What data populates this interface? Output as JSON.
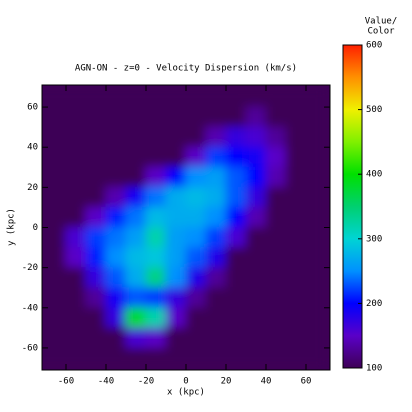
{
  "chart_data": {
    "type": "heatmap",
    "title": "AGN-ON - z=0 - Velocity Dispersion (km/s)",
    "x_label": "x (kpc)",
    "y_label": "y (kpc)",
    "colorbar_title": [
      "Value/",
      "Color"
    ],
    "x": [
      -75,
      -65,
      -55,
      -45,
      -35,
      -25,
      -15,
      -5,
      5,
      15,
      25,
      35,
      45,
      55,
      65
    ],
    "y": [
      65,
      55,
      45,
      35,
      25,
      15,
      5,
      -5,
      -15,
      -25,
      -35,
      -45,
      -55,
      -65
    ],
    "z": [
      [
        100,
        100,
        100,
        100,
        100,
        100,
        100,
        100,
        100,
        100,
        100,
        100,
        100,
        100,
        100
      ],
      [
        100,
        100,
        100,
        100,
        100,
        100,
        100,
        100,
        100,
        100,
        100,
        130,
        100,
        100,
        100
      ],
      [
        100,
        100,
        100,
        100,
        100,
        100,
        100,
        100,
        100,
        140,
        170,
        160,
        130,
        100,
        100
      ],
      [
        100,
        100,
        100,
        100,
        100,
        100,
        100,
        100,
        150,
        220,
        200,
        190,
        150,
        100,
        100
      ],
      [
        100,
        100,
        100,
        100,
        100,
        100,
        150,
        200,
        250,
        260,
        230,
        200,
        140,
        100,
        100
      ],
      [
        100,
        100,
        100,
        100,
        140,
        190,
        240,
        270,
        280,
        270,
        230,
        170,
        100,
        100,
        100
      ],
      [
        100,
        100,
        100,
        150,
        210,
        240,
        280,
        270,
        270,
        250,
        200,
        140,
        100,
        100,
        100
      ],
      [
        100,
        100,
        160,
        220,
        240,
        260,
        320,
        260,
        250,
        220,
        160,
        100,
        100,
        100,
        100
      ],
      [
        100,
        100,
        150,
        210,
        250,
        280,
        290,
        260,
        230,
        180,
        100,
        100,
        100,
        100,
        100
      ],
      [
        100,
        100,
        100,
        170,
        230,
        270,
        340,
        250,
        180,
        130,
        100,
        100,
        100,
        100,
        100
      ],
      [
        100,
        100,
        100,
        130,
        190,
        230,
        220,
        170,
        130,
        100,
        100,
        100,
        100,
        100,
        100
      ],
      [
        100,
        100,
        100,
        100,
        170,
        380,
        320,
        150,
        100,
        100,
        100,
        100,
        100,
        100,
        100
      ],
      [
        100,
        100,
        100,
        100,
        100,
        160,
        150,
        100,
        100,
        100,
        100,
        100,
        100,
        100,
        100
      ],
      [
        100,
        100,
        100,
        100,
        100,
        100,
        100,
        100,
        100,
        100,
        100,
        100,
        100,
        100,
        100
      ]
    ],
    "xlim": [
      -72,
      72
    ],
    "ylim": [
      -71,
      71
    ],
    "xticks": [
      -60,
      -40,
      -20,
      0,
      20,
      40,
      60
    ],
    "yticks": [
      -60,
      -40,
      -20,
      0,
      20,
      40,
      60
    ],
    "clim": [
      100,
      600
    ],
    "cticks": [
      100,
      200,
      300,
      400,
      500,
      600
    ],
    "colorscale": [
      [
        100,
        "#3e0056"
      ],
      [
        150,
        "#5a00c8"
      ],
      [
        200,
        "#0000ff"
      ],
      [
        250,
        "#0090ff"
      ],
      [
        300,
        "#00d4d4"
      ],
      [
        350,
        "#00d070"
      ],
      [
        400,
        "#00e000"
      ],
      [
        450,
        "#80f000"
      ],
      [
        500,
        "#f0f000"
      ],
      [
        550,
        "#ff9000"
      ],
      [
        600,
        "#ff2000"
      ]
    ]
  }
}
